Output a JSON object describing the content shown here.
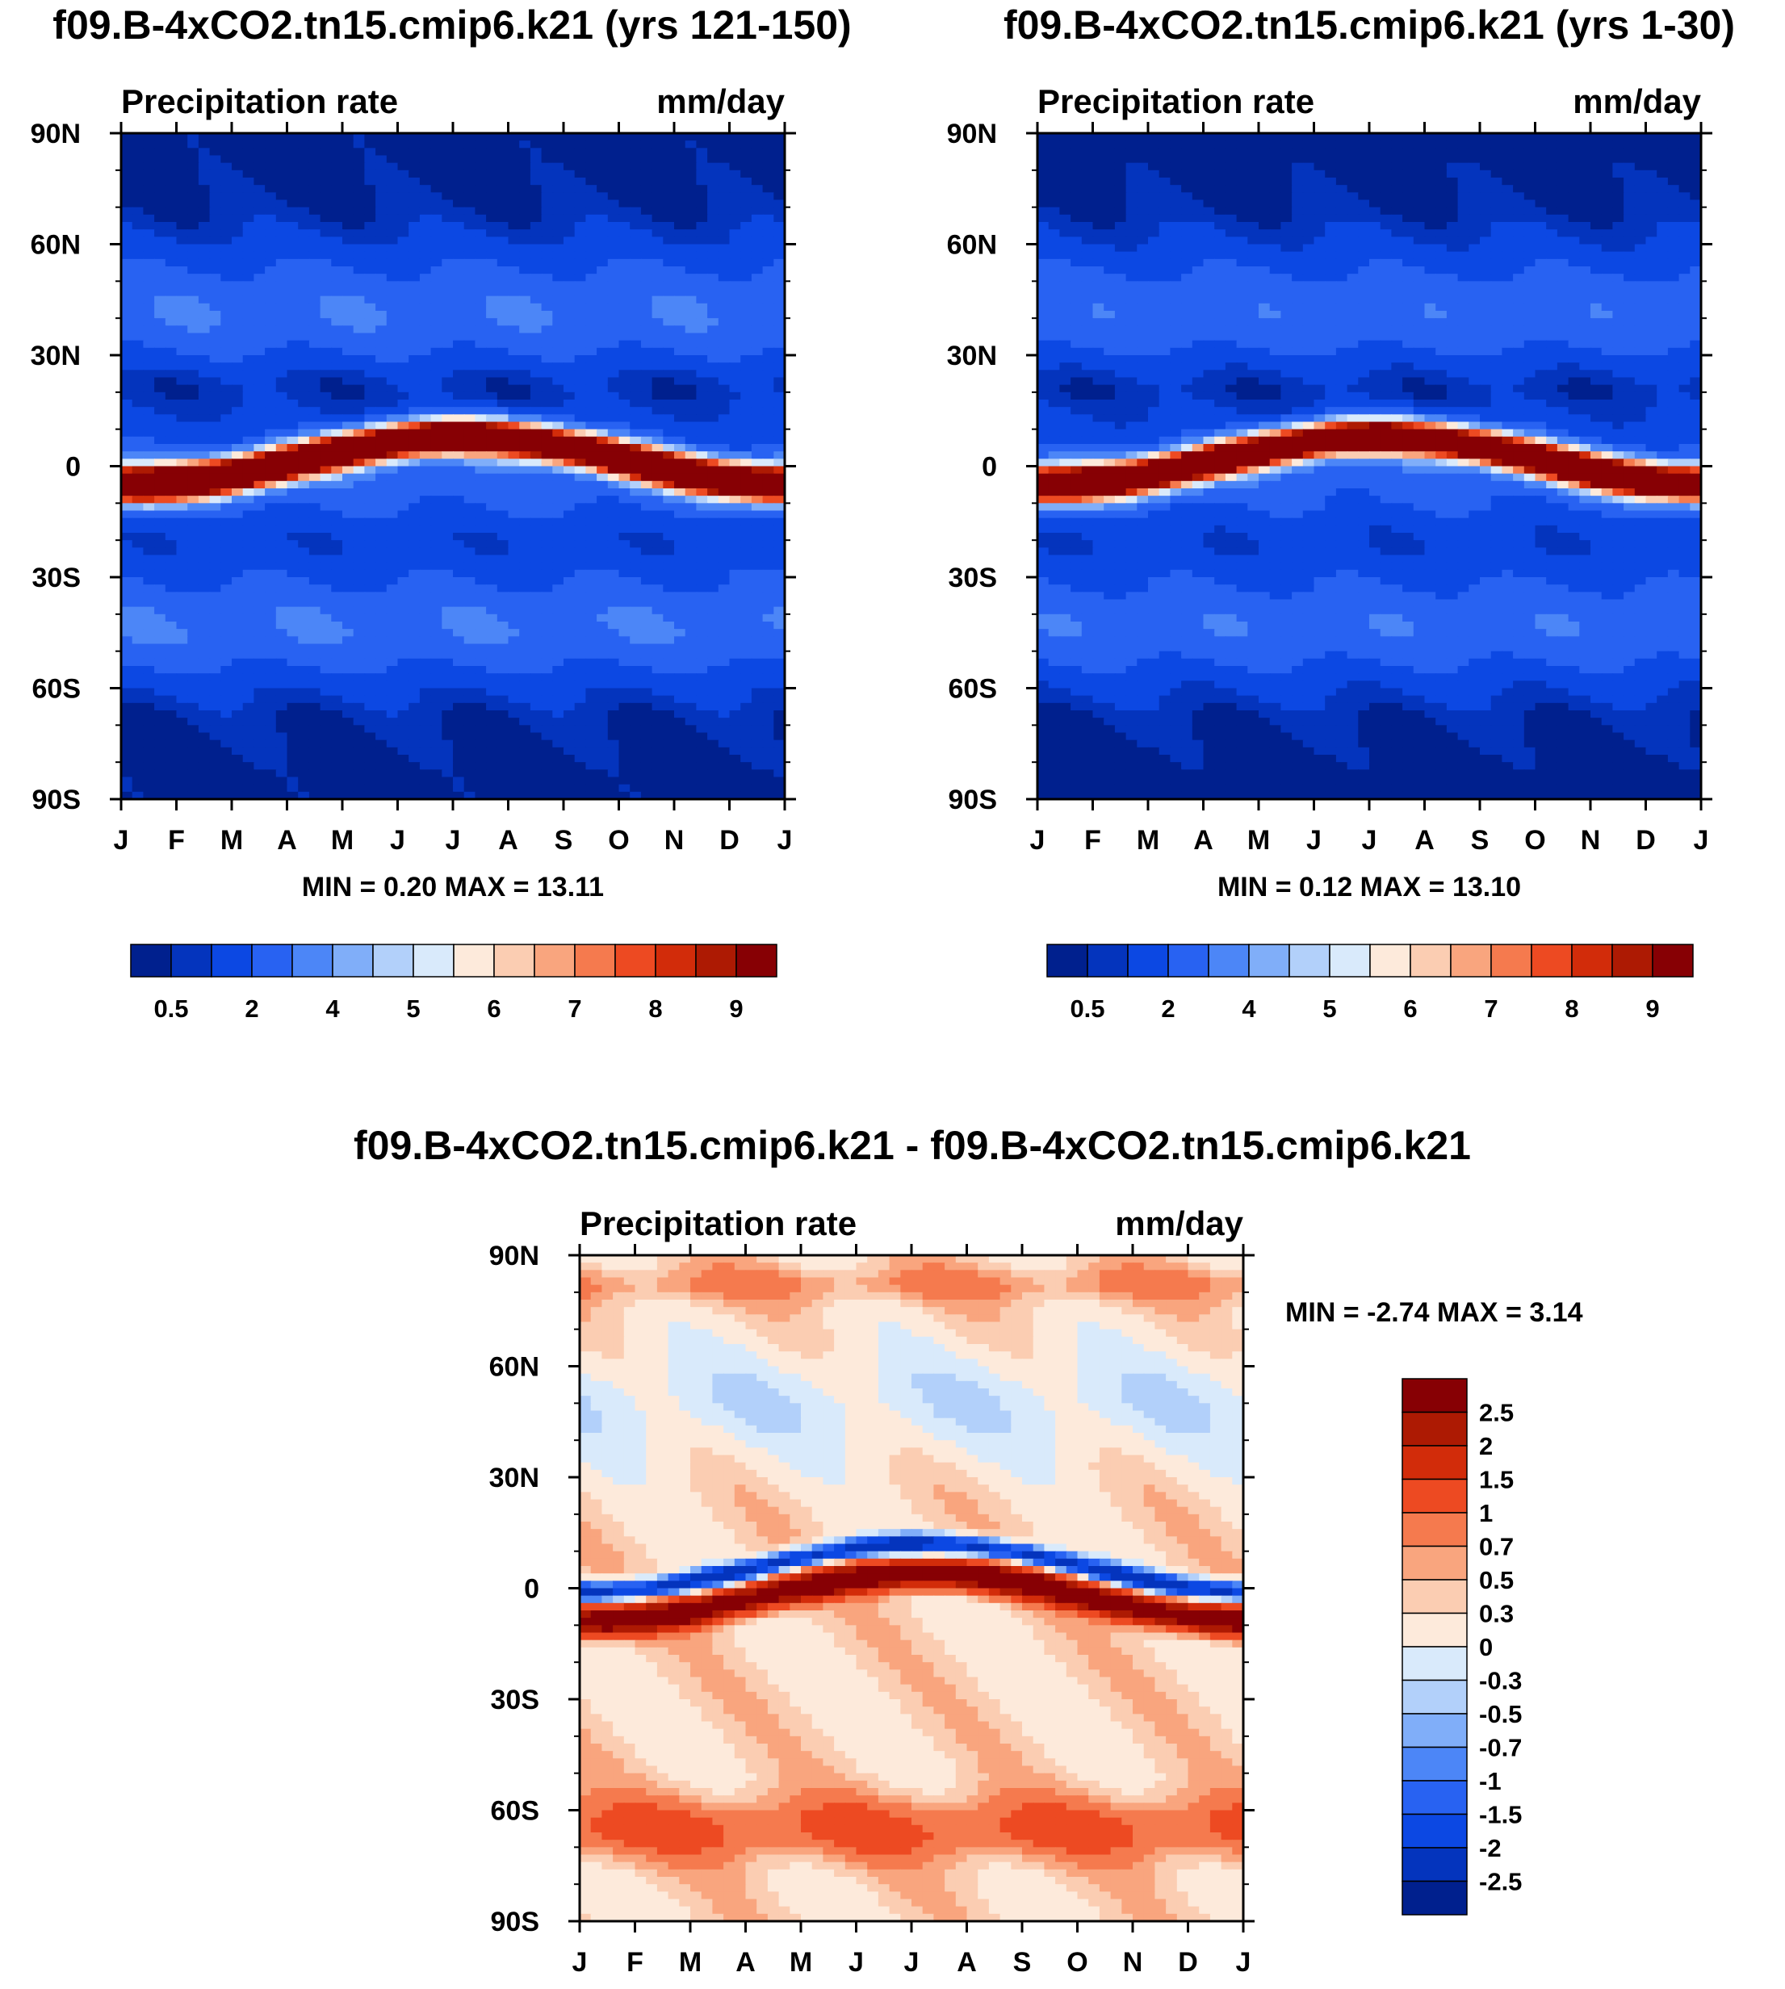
{
  "chart_data": [
    {
      "type": "contour",
      "title": "f09.B-4xCO2.tn15.cmip6.k21 (yrs 121-150)",
      "left_label": "Precipitation rate",
      "right_label": "mm/day",
      "min_max": "MIN =   0.20 MAX =  13.11",
      "y_ticks": [
        "90N",
        "60N",
        "30N",
        "0",
        "30S",
        "60S",
        "90S"
      ],
      "x_ticks": [
        "J",
        "F",
        "M",
        "A",
        "M",
        "J",
        "J",
        "A",
        "S",
        "O",
        "N",
        "D",
        "J"
      ],
      "colorbar_labels": [
        "0.5",
        "2",
        "4",
        "5",
        "6",
        "7",
        "8",
        "9"
      ],
      "colorbar_colors": [
        "#00208e",
        "#0434bd",
        "#0c48e3",
        "#2862f2",
        "#4c86f7",
        "#80aef9",
        "#b2d0fa",
        "#d9eafb",
        "#fdeadb",
        "#fbcdb2",
        "#f9a57e",
        "#f57a4e",
        "#ed4a22",
        "#d22c0a",
        "#ad1a03",
        "#870004"
      ],
      "field_mode": "clim_late"
    },
    {
      "type": "contour",
      "title": "f09.B-4xCO2.tn15.cmip6.k21 (yrs 1-30)",
      "left_label": "Precipitation rate",
      "right_label": "mm/day",
      "min_max": "MIN =   0.12 MAX =  13.10",
      "y_ticks": [
        "90N",
        "60N",
        "30N",
        "0",
        "30S",
        "60S",
        "90S"
      ],
      "x_ticks": [
        "J",
        "F",
        "M",
        "A",
        "M",
        "J",
        "J",
        "A",
        "S",
        "O",
        "N",
        "D",
        "J"
      ],
      "colorbar_labels": [
        "0.5",
        "2",
        "4",
        "5",
        "6",
        "7",
        "8",
        "9"
      ],
      "colorbar_colors": [
        "#00208e",
        "#0434bd",
        "#0c48e3",
        "#2862f2",
        "#4c86f7",
        "#80aef9",
        "#b2d0fa",
        "#d9eafb",
        "#fdeadb",
        "#fbcdb2",
        "#f9a57e",
        "#f57a4e",
        "#ed4a22",
        "#d22c0a",
        "#ad1a03",
        "#870004"
      ],
      "field_mode": "clim_early"
    },
    {
      "type": "contour",
      "title": "f09.B-4xCO2.tn15.cmip6.k21 - f09.B-4xCO2.tn15.cmip6.k21",
      "left_label": "Precipitation rate",
      "right_label": "mm/day",
      "min_max": "MIN =  -2.74 MAX =   3.14",
      "y_ticks": [
        "90N",
        "60N",
        "30N",
        "0",
        "30S",
        "60S",
        "90S"
      ],
      "x_ticks": [
        "J",
        "F",
        "M",
        "A",
        "M",
        "J",
        "J",
        "A",
        "S",
        "O",
        "N",
        "D",
        "J"
      ],
      "colorbar_labels": [
        "2.5",
        "2",
        "1.5",
        "1",
        "0.7",
        "0.5",
        "0.3",
        "0",
        "-0.3",
        "-0.5",
        "-0.7",
        "-1",
        "-1.5",
        "-2",
        "-2.5"
      ],
      "colorbar_colors": [
        "#870004",
        "#ad1a03",
        "#d22c0a",
        "#ed4a22",
        "#f57a4e",
        "#f9a57e",
        "#fbcdb2",
        "#fdeadb",
        "#d9eafb",
        "#b2d0fa",
        "#80aef9",
        "#4c86f7",
        "#2862f2",
        "#0c48e3",
        "#0434bd",
        "#00208e"
      ],
      "field_mode": "diff"
    }
  ]
}
